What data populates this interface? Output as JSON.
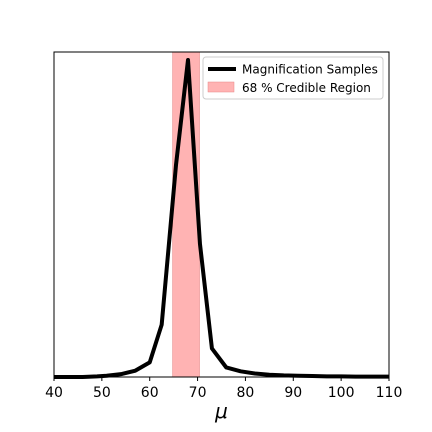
{
  "chart_data": {
    "type": "line",
    "title": "",
    "xlabel": "μ",
    "ylabel": "",
    "xlim": [
      40,
      110
    ],
    "ylim": [
      0,
      1.0
    ],
    "xticks": [
      40,
      50,
      60,
      70,
      80,
      90,
      100,
      110
    ],
    "xtick_labels": [
      "40",
      "50",
      "60",
      "70",
      "80",
      "90",
      "100",
      "110"
    ],
    "yticks_visible": false,
    "grid": false,
    "legend_position": "top-right",
    "series": [
      {
        "name": "Magnification Samples",
        "type": "line",
        "color": "#000000",
        "x": [
          40,
          43,
          46,
          49,
          51,
          54,
          57,
          60,
          62.5,
          65.5,
          68,
          70.5,
          73,
          76,
          79,
          82,
          85,
          88,
          91,
          94,
          97,
          100,
          103,
          106,
          110
        ],
        "y": [
          0.0,
          0.0,
          0.0,
          0.002,
          0.004,
          0.009,
          0.02,
          0.046,
          0.165,
          0.67,
          1.0,
          0.42,
          0.09,
          0.03,
          0.018,
          0.011,
          0.007,
          0.005,
          0.004,
          0.003,
          0.002,
          0.002,
          0.001,
          0.001,
          0.001
        ]
      }
    ],
    "region": {
      "name": "68 % Credible Region",
      "color": "#ffb3b3",
      "x_start": 64.8,
      "x_end": 70.4
    }
  }
}
